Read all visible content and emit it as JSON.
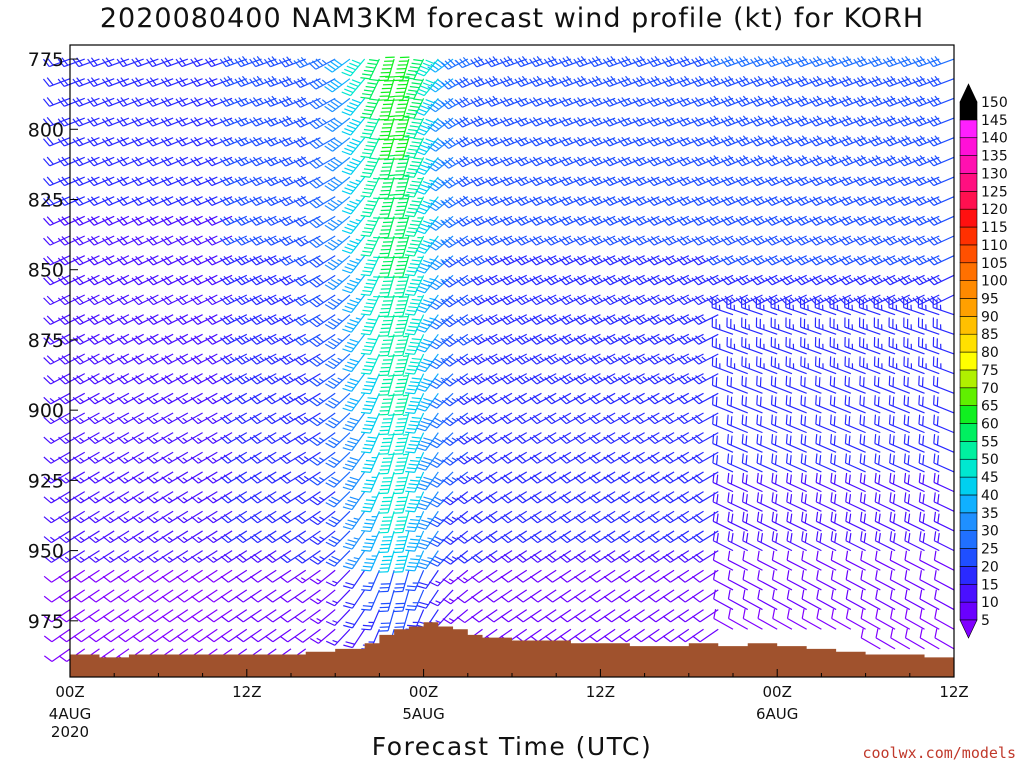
{
  "title": "2020080400 NAM3KM forecast wind profile (kt) for KORH",
  "xlabel": "Forecast Time (UTC)",
  "watermark": "coolwx.com/models",
  "chart_data": {
    "type": "wind-barb time-height cross-section",
    "title": "2020080400 NAM3KM forecast wind profile (kt) for KORH",
    "xlabel": "Forecast Time (UTC)",
    "ylabel": "",
    "x_unit": "hours from 2020-08-04 00Z",
    "xlim": [
      0,
      60
    ],
    "x_ticks": [
      {
        "x": 0,
        "label": "00Z",
        "sub": [
          "4AUG",
          "2020"
        ]
      },
      {
        "x": 12,
        "label": "12Z",
        "sub": []
      },
      {
        "x": 24,
        "label": "00Z",
        "sub": [
          "5AUG"
        ]
      },
      {
        "x": 36,
        "label": "12Z",
        "sub": []
      },
      {
        "x": 48,
        "label": "00Z",
        "sub": [
          "6AUG"
        ]
      },
      {
        "x": 60,
        "label": "12Z",
        "sub": []
      }
    ],
    "y_unit": "hPa",
    "ylim": [
      995,
      770
    ],
    "y_ticks": [
      775,
      800,
      825,
      850,
      875,
      900,
      925,
      950,
      975
    ],
    "colorbar": {
      "unit": "kt",
      "levels": [
        5,
        10,
        15,
        20,
        25,
        30,
        35,
        40,
        45,
        50,
        55,
        60,
        65,
        70,
        75,
        80,
        85,
        90,
        95,
        100,
        105,
        110,
        115,
        120,
        125,
        130,
        135,
        140,
        145,
        150
      ],
      "colors": [
        "#8000ff",
        "#6a00ff",
        "#4a10ff",
        "#2a2aff",
        "#1f4fff",
        "#2070ff",
        "#1f90ff",
        "#10b0ff",
        "#00d0f0",
        "#00e8d0",
        "#00f0a0",
        "#00f060",
        "#10f020",
        "#60f000",
        "#b0f000",
        "#ffff00",
        "#ffe000",
        "#ffc000",
        "#ffa000",
        "#ff8a00",
        "#ff7000",
        "#ff5000",
        "#ff3000",
        "#ff1010",
        "#ff1050",
        "#ff0f80",
        "#ff10b0",
        "#ff10d8",
        "#ff20ff",
        "#000000"
      ],
      "extend": "both"
    },
    "terrain_color": "#a0522d",
    "terrain": {
      "x": [
        0,
        2,
        4,
        6,
        8,
        10,
        12,
        14,
        16,
        18,
        20,
        21,
        22,
        23,
        24,
        25,
        26,
        27,
        28,
        30,
        32,
        34,
        36,
        38,
        40,
        42,
        44,
        46,
        48,
        50,
        52,
        54,
        56,
        58,
        60
      ],
      "p": [
        987,
        988,
        987,
        987,
        987,
        987,
        987,
        987,
        986,
        985,
        983,
        980,
        978,
        977,
        975.5,
        977,
        978,
        980,
        981,
        982,
        982,
        983,
        983,
        984,
        984,
        983,
        984,
        983,
        984,
        985,
        986,
        987,
        987,
        988,
        988
      ]
    },
    "wind_field": {
      "time_step_h": 1,
      "pressure_step_hPa": 7,
      "pressure_top": 775,
      "pressure_bottom": 985,
      "description": "Generally SW-W flow 15-35 kt; a narrow band of stronger S-SW winds 40-80 kt near 5AUG 00Z; winds weakening to ~5-15 kt near the surface."
    }
  }
}
